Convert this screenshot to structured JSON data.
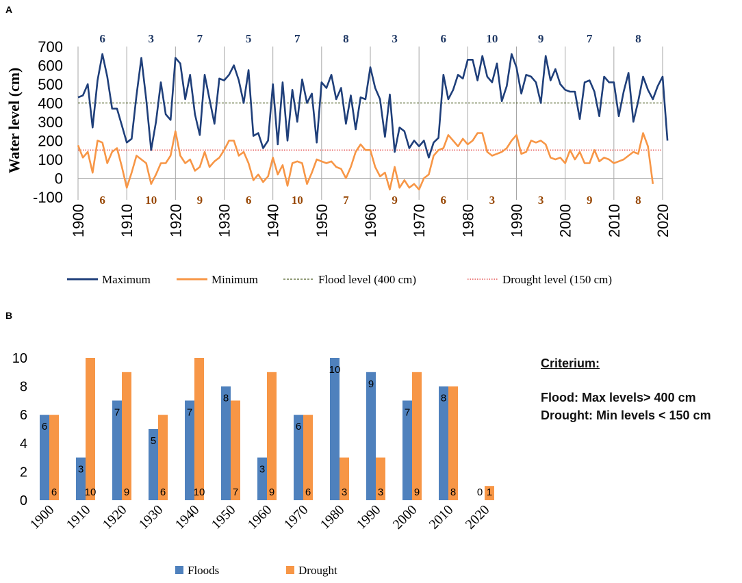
{
  "panelA": {
    "label": "A",
    "legend": {
      "maximum": "Maximum",
      "minimum": "Minimum",
      "flood": "Flood level (400 cm)",
      "drought": "Drought level (150 cm)"
    }
  },
  "panelB": {
    "label": "B",
    "legend": {
      "floods": "Floods",
      "drought": "Drought"
    }
  },
  "criterium": {
    "title": "Criterium:",
    "flood": "Flood:  Max levels> 400 cm",
    "drought": "Drought: Min levels < 150 cm"
  },
  "colors": {
    "maximum": "#1f3f7a",
    "minimum": "#f79646",
    "flood_line": "#4f6228",
    "drought_line": "#e03030",
    "floods_bar": "#4f81bd",
    "drought_bar": "#f79646",
    "top_counts": "#1f3864",
    "bottom_counts": "#984806"
  },
  "chart_data": [
    {
      "type": "line",
      "ylabel": "Water level (cm)",
      "xlabel": "",
      "ylim": [
        -100,
        700
      ],
      "yticks": [
        -100,
        0,
        100,
        200,
        300,
        400,
        500,
        600,
        700
      ],
      "xlim": [
        1900,
        2020
      ],
      "xticks": [
        1900,
        1910,
        1920,
        1930,
        1940,
        1950,
        1960,
        1970,
        1980,
        1990,
        2000,
        2010,
        2020
      ],
      "x_start": 1900,
      "series": [
        {
          "name": "Maximum",
          "values": [
            430,
            440,
            500,
            270,
            520,
            660,
            540,
            370,
            370,
            280,
            190,
            210,
            440,
            640,
            420,
            150,
            300,
            510,
            340,
            310,
            640,
            610,
            420,
            550,
            340,
            230,
            550,
            420,
            290,
            530,
            520,
            550,
            600,
            520,
            400,
            575,
            225,
            240,
            160,
            200,
            500,
            180,
            510,
            200,
            470,
            300,
            525,
            400,
            450,
            190,
            510,
            480,
            550,
            420,
            480,
            290,
            440,
            260,
            430,
            420,
            590,
            480,
            420,
            220,
            445,
            140,
            270,
            250,
            160,
            200,
            170,
            200,
            110,
            190,
            215,
            550,
            420,
            470,
            550,
            530,
            630,
            630,
            520,
            650,
            540,
            510,
            610,
            410,
            490,
            660,
            590,
            450,
            550,
            540,
            510,
            400,
            650,
            520,
            580,
            500,
            470,
            460,
            460,
            315,
            510,
            520,
            460,
            330,
            540,
            510,
            510,
            330,
            460,
            560,
            300,
            410,
            540,
            470,
            420,
            490,
            540,
            200
          ]
        },
        {
          "name": "Minimum",
          "values": [
            175,
            110,
            140,
            30,
            200,
            190,
            80,
            140,
            160,
            60,
            -50,
            30,
            120,
            100,
            80,
            -30,
            20,
            80,
            80,
            120,
            250,
            120,
            80,
            100,
            40,
            60,
            140,
            60,
            90,
            110,
            150,
            200,
            200,
            120,
            140,
            80,
            -10,
            20,
            -20,
            10,
            110,
            20,
            70,
            -40,
            80,
            90,
            80,
            -30,
            30,
            100,
            90,
            80,
            90,
            60,
            50,
            0,
            60,
            140,
            180,
            150,
            150,
            60,
            10,
            30,
            -60,
            60,
            -50,
            -10,
            -50,
            -30,
            -60,
            0,
            20,
            120,
            150,
            160,
            230,
            200,
            170,
            210,
            180,
            200,
            240,
            240,
            140,
            120,
            130,
            140,
            160,
            200,
            230,
            130,
            140,
            200,
            190,
            200,
            180,
            110,
            100,
            110,
            80,
            150,
            100,
            140,
            80,
            80,
            150,
            90,
            110,
            100,
            80,
            90,
            100,
            120,
            140,
            130,
            240,
            170,
            -30
          ]
        },
        {
          "name": "Flood level (400 cm)",
          "values": [
            400,
            400
          ],
          "x": [
            1900,
            2020
          ]
        },
        {
          "name": "Drought level (150 cm)",
          "values": [
            150,
            150
          ],
          "x": [
            1900,
            2020
          ]
        }
      ],
      "decade_counts_top": [
        6,
        3,
        7,
        5,
        7,
        8,
        3,
        6,
        10,
        9,
        7,
        8
      ],
      "decade_counts_bottom": [
        6,
        10,
        9,
        6,
        10,
        7,
        9,
        6,
        3,
        3,
        9,
        8
      ]
    },
    {
      "type": "bar",
      "ylim": [
        0,
        10
      ],
      "yticks": [
        0,
        2,
        4,
        6,
        8,
        10
      ],
      "categories": [
        "1900",
        "1910",
        "1920",
        "1930",
        "1940",
        "1950",
        "1960",
        "1970",
        "1980",
        "1990",
        "2000",
        "2010",
        "2020"
      ],
      "series": [
        {
          "name": "Floods",
          "values": [
            6,
            3,
            7,
            5,
            7,
            8,
            3,
            6,
            10,
            9,
            7,
            8,
            0
          ]
        },
        {
          "name": "Drought",
          "values": [
            6,
            10,
            9,
            6,
            10,
            7,
            9,
            6,
            3,
            3,
            9,
            8,
            1
          ]
        }
      ]
    }
  ]
}
